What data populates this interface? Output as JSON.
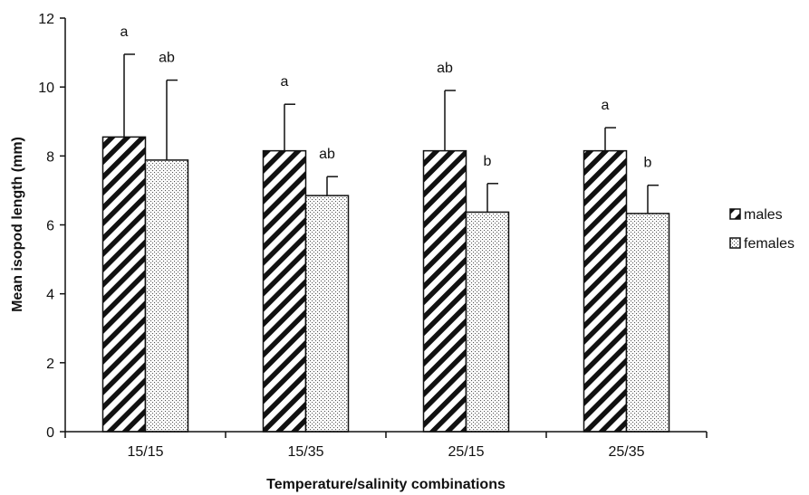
{
  "chart_data": {
    "type": "bar",
    "title": "",
    "xlabel": "Temperature/salinity combinations",
    "ylabel": "Mean isopod length (mm)",
    "ylim": [
      0,
      12
    ],
    "yticks": [
      "0",
      "2",
      "4",
      "6",
      "8",
      "10",
      "12"
    ],
    "categories": [
      "15/15",
      "15/35",
      "25/15",
      "25/35"
    ],
    "series": [
      {
        "name": "males",
        "pattern": "diagonal-hatch",
        "values": [
          8.55,
          8.15,
          8.15,
          8.15
        ],
        "error_upper": [
          10.95,
          9.5,
          9.9,
          8.82
        ],
        "sig_labels": [
          "a",
          "a",
          "ab",
          "a"
        ]
      },
      {
        "name": "females",
        "pattern": "dotted",
        "values": [
          7.88,
          6.85,
          6.37,
          6.33
        ],
        "error_upper": [
          10.2,
          7.4,
          7.2,
          7.15
        ],
        "sig_labels": [
          "ab",
          "ab",
          "b",
          "b"
        ]
      }
    ],
    "legend_position": "right",
    "grid": false
  }
}
